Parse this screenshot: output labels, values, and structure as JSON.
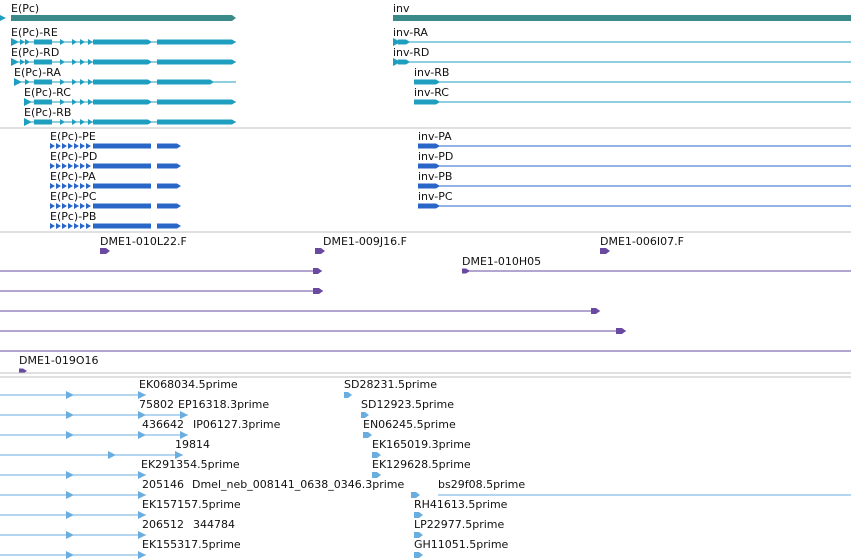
{
  "colors": {
    "gene": "#3a8a8a",
    "transcript": "#1f9fbf",
    "cds": "#2a66c8",
    "bac": "#6a4aa0",
    "est": "#6aaee0",
    "divider": "#c0c0c0"
  },
  "tracks": {
    "genes": [
      {
        "label": "E(Pc)",
        "type": "gene"
      },
      {
        "label": "inv",
        "type": "gene"
      }
    ],
    "transcripts": [
      {
        "label": "E(Pc)-RE"
      },
      {
        "label": "E(Pc)-RD"
      },
      {
        "label": "E(Pc)-RA"
      },
      {
        "label": "E(Pc)-RC"
      },
      {
        "label": "E(Pc)-RB"
      },
      {
        "label": "inv-RA"
      },
      {
        "label": "inv-RD"
      },
      {
        "label": "inv-RB"
      },
      {
        "label": "inv-RC"
      }
    ],
    "proteins": [
      {
        "label": "E(Pc)-PE"
      },
      {
        "label": "E(Pc)-PD"
      },
      {
        "label": "E(Pc)-PA"
      },
      {
        "label": "E(Pc)-PC"
      },
      {
        "label": "E(Pc)-PB"
      },
      {
        "label": "inv-PA"
      },
      {
        "label": "inv-PD"
      },
      {
        "label": "inv-PB"
      },
      {
        "label": "inv-PC"
      }
    ],
    "bac_clones": [
      {
        "label": "DME1-010L22.F"
      },
      {
        "label": "DME1-009J16.F"
      },
      {
        "label": "DME1-006I07.F"
      },
      {
        "label": "DME1-010H05"
      },
      {
        "label": "DME1-019O16"
      }
    ],
    "est_labels": [
      "EK068034.5prime",
      "SD28231.5prime",
      "75802",
      "EP16318.3prime",
      "SD12923.5prime",
      "436642",
      "IP06127.3prime",
      "EN06245.5prime",
      "19814",
      "EK165019.3prime",
      "EK291354.5prime",
      "EK129628.5prime",
      "205146",
      "Dmel_neb_008141_0638_0346.3prime",
      "bs29f08.5prime",
      "EK157157.5prime",
      "RH41613.5prime",
      "206512",
      "344784",
      "LP22977.5prime",
      "EK155317.5prime",
      "GH11051.5prime"
    ]
  }
}
